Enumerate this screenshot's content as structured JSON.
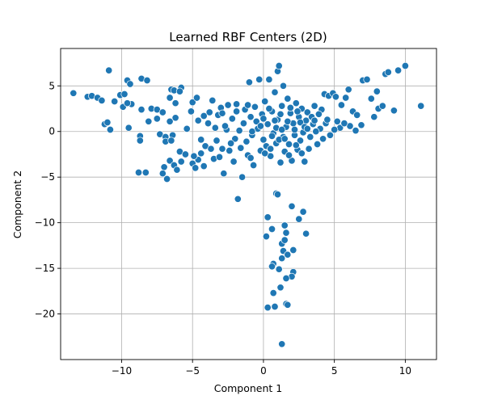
{
  "chart_data": {
    "type": "scatter",
    "title": "Learned RBF Centers (2D)",
    "xlabel": "Component 1",
    "ylabel": "Component 2",
    "xlim": [
      -14.3,
      12.2
    ],
    "ylim": [
      -25.0,
      9.1
    ],
    "xticks": [
      -10,
      -5,
      0,
      5,
      10
    ],
    "yticks": [
      5,
      0,
      -5,
      -10,
      -15,
      -20
    ],
    "ytick_labels": [
      "5",
      "0",
      "−5",
      "−10",
      "−15",
      "−20"
    ],
    "xtick_labels": [
      "−10",
      "−5",
      "0",
      "5",
      "10"
    ],
    "grid": true,
    "color": "#1f77b4",
    "points": [
      [
        -13.4,
        4.2
      ],
      [
        -12.4,
        3.8
      ],
      [
        -12.1,
        3.9
      ],
      [
        -11.7,
        3.7
      ],
      [
        -11.4,
        3.4
      ],
      [
        -10.9,
        6.7
      ],
      [
        -11.2,
        0.8
      ],
      [
        -11.0,
        1.0
      ],
      [
        -10.8,
        0.2
      ],
      [
        -10.5,
        3.3
      ],
      [
        -10.1,
        4.0
      ],
      [
        -9.9,
        2.7
      ],
      [
        -9.6,
        5.6
      ],
      [
        -9.4,
        5.2
      ],
      [
        -9.3,
        3.0
      ],
      [
        -9.6,
        3.1
      ],
      [
        -9.8,
        4.1
      ],
      [
        -9.5,
        0.4
      ],
      [
        -8.6,
        5.8
      ],
      [
        -8.2,
        5.6
      ],
      [
        -8.6,
        2.4
      ],
      [
        -8.7,
        -0.5
      ],
      [
        -8.7,
        -1.0
      ],
      [
        -8.8,
        -4.5
      ],
      [
        -8.3,
        -4.5
      ],
      [
        -8.1,
        1.1
      ],
      [
        -7.9,
        2.5
      ],
      [
        -7.5,
        2.4
      ],
      [
        -7.5,
        1.4
      ],
      [
        -7.1,
        2.1
      ],
      [
        -7.3,
        -0.3
      ],
      [
        -6.9,
        -0.6
      ],
      [
        -6.9,
        -1.1
      ],
      [
        -7.0,
        -3.9
      ],
      [
        -7.1,
        -4.6
      ],
      [
        -6.8,
        -5.2
      ],
      [
        -6.6,
        3.7
      ],
      [
        -6.5,
        4.6
      ],
      [
        -6.3,
        4.5
      ],
      [
        -6.2,
        3.1
      ],
      [
        -5.8,
        4.8
      ],
      [
        -5.9,
        4.4
      ],
      [
        -6.6,
        1.1
      ],
      [
        -6.2,
        1.5
      ],
      [
        -6.4,
        -0.4
      ],
      [
        -6.5,
        -1.0
      ],
      [
        -6.6,
        -3.2
      ],
      [
        -6.3,
        -3.7
      ],
      [
        -6.1,
        -4.2
      ],
      [
        -5.8,
        -3.3
      ],
      [
        -5.9,
        -2.2
      ],
      [
        -5.5,
        -2.5
      ],
      [
        -5.4,
        0.3
      ],
      [
        -5.1,
        2.2
      ],
      [
        -5.0,
        3.2
      ],
      [
        -4.7,
        3.7
      ],
      [
        -4.6,
        1.2
      ],
      [
        -5.0,
        -3.5
      ],
      [
        -4.8,
        -4.0
      ],
      [
        -4.6,
        -3.1
      ],
      [
        -4.4,
        -2.4
      ],
      [
        -4.2,
        -3.8
      ],
      [
        -4.1,
        -1.6
      ],
      [
        -3.9,
        0.9
      ],
      [
        -3.8,
        2.1
      ],
      [
        -3.6,
        3.4
      ],
      [
        -3.5,
        -3.0
      ],
      [
        -3.3,
        -1.0
      ],
      [
        -3.2,
        1.8
      ],
      [
        -3.0,
        2.6
      ],
      [
        -2.9,
        -1.9
      ],
      [
        -2.8,
        -4.6
      ],
      [
        -2.6,
        0.2
      ],
      [
        -2.5,
        2.9
      ],
      [
        -2.4,
        -2.1
      ],
      [
        -2.2,
        1.4
      ],
      [
        -2.0,
        -0.8
      ],
      [
        -1.9,
        3.0
      ],
      [
        -1.8,
        -7.4
      ],
      [
        -1.5,
        -5.0
      ],
      [
        -1.6,
        -1.8
      ],
      [
        -1.4,
        0.9
      ],
      [
        -1.3,
        2.4
      ],
      [
        -1.1,
        -2.6
      ],
      [
        -1.0,
        5.4
      ],
      [
        -0.9,
        1.6
      ],
      [
        -0.8,
        -0.4
      ],
      [
        -0.7,
        -3.7
      ],
      [
        -0.6,
        2.7
      ],
      [
        -0.4,
        0.3
      ],
      [
        -0.3,
        5.7
      ],
      [
        -0.2,
        -2.1
      ],
      [
        -0.1,
        1.9
      ],
      [
        0.0,
        -0.9
      ],
      [
        0.1,
        3.3
      ],
      [
        0.2,
        -1.6
      ],
      [
        0.3,
        0.8
      ],
      [
        0.4,
        5.7
      ],
      [
        0.5,
        -2.7
      ],
      [
        0.6,
        2.2
      ],
      [
        0.7,
        -0.2
      ],
      [
        0.8,
        4.3
      ],
      [
        0.9,
        -1.3
      ],
      [
        1.0,
        6.6
      ],
      [
        1.1,
        7.2
      ],
      [
        1.0,
        1.3
      ],
      [
        1.2,
        -3.4
      ],
      [
        1.3,
        2.8
      ],
      [
        1.4,
        5.0
      ],
      [
        1.4,
        -0.6
      ],
      [
        1.5,
        -2.2
      ],
      [
        1.6,
        0.5
      ],
      [
        1.7,
        3.6
      ],
      [
        1.8,
        -1.4
      ],
      [
        1.9,
        2.0
      ],
      [
        2.0,
        -3.2
      ],
      [
        2.1,
        0.9
      ],
      [
        2.2,
        -0.4
      ],
      [
        2.3,
        3.1
      ],
      [
        2.4,
        -2.0
      ],
      [
        2.5,
        1.6
      ],
      [
        2.6,
        -1.0
      ],
      [
        2.7,
        2.5
      ],
      [
        2.8,
        -0.1
      ],
      [
        2.9,
        -3.3
      ],
      [
        3.0,
        1.2
      ],
      [
        3.1,
        2.1
      ],
      [
        3.3,
        -0.6
      ],
      [
        3.5,
        0.8
      ],
      [
        3.6,
        2.8
      ],
      [
        3.8,
        -1.4
      ],
      [
        4.0,
        0.3
      ],
      [
        4.1,
        2.4
      ],
      [
        4.3,
        4.1
      ],
      [
        4.4,
        0.9
      ],
      [
        4.6,
        3.9
      ],
      [
        4.7,
        -0.4
      ],
      [
        4.9,
        4.2
      ],
      [
        5.1,
        3.8
      ],
      [
        5.2,
        1.1
      ],
      [
        5.4,
        0.4
      ],
      [
        5.5,
        2.9
      ],
      [
        5.8,
        3.7
      ],
      [
        6.0,
        4.6
      ],
      [
        6.1,
        0.6
      ],
      [
        6.3,
        2.2
      ],
      [
        6.5,
        0.1
      ],
      [
        6.6,
        1.8
      ],
      [
        6.9,
        0.7
      ],
      [
        7.0,
        5.6
      ],
      [
        7.3,
        5.7
      ],
      [
        7.6,
        3.6
      ],
      [
        7.8,
        1.6
      ],
      [
        8.0,
        4.4
      ],
      [
        8.1,
        2.5
      ],
      [
        8.4,
        2.8
      ],
      [
        8.6,
        6.3
      ],
      [
        8.8,
        6.5
      ],
      [
        9.2,
        2.3
      ],
      [
        9.5,
        6.7
      ],
      [
        10.0,
        7.2
      ],
      [
        11.1,
        2.8
      ],
      [
        0.3,
        -9.4
      ],
      [
        0.6,
        -10.7
      ],
      [
        0.2,
        -11.5
      ],
      [
        1.3,
        -12.3
      ],
      [
        1.5,
        -10.3
      ],
      [
        1.4,
        -13.1
      ],
      [
        1.6,
        -11.1
      ],
      [
        1.5,
        -11.9
      ],
      [
        1.7,
        -13.5
      ],
      [
        1.3,
        -13.9
      ],
      [
        2.0,
        -8.2
      ],
      [
        2.1,
        -13.0
      ],
      [
        2.5,
        -9.6
      ],
      [
        2.8,
        -8.8
      ],
      [
        3.0,
        -11.2
      ],
      [
        0.7,
        -14.5
      ],
      [
        0.6,
        -14.8
      ],
      [
        1.1,
        -15.1
      ],
      [
        2.1,
        -15.4
      ],
      [
        2.0,
        -15.9
      ],
      [
        1.6,
        -16.1
      ],
      [
        1.2,
        -17.1
      ],
      [
        0.7,
        -17.7
      ],
      [
        1.6,
        -18.9
      ],
      [
        1.7,
        -19.0
      ],
      [
        0.8,
        -19.2
      ],
      [
        0.3,
        -19.3
      ],
      [
        1.3,
        -23.3
      ],
      [
        0.9,
        -6.8
      ],
      [
        1.0,
        -6.9
      ],
      [
        -4.9,
        -2.7
      ],
      [
        -4.4,
        -0.9
      ],
      [
        -3.1,
        -2.8
      ],
      [
        -2.7,
        0.6
      ],
      [
        -1.2,
        -1.1
      ],
      [
        -0.5,
        1.1
      ],
      [
        0.4,
        2.5
      ],
      [
        0.9,
        0.4
      ],
      [
        1.1,
        -0.9
      ],
      [
        1.7,
        1.1
      ],
      [
        2.2,
        0.2
      ],
      [
        2.6,
        1.0
      ],
      [
        3.2,
        -1.9
      ],
      [
        3.4,
        1.6
      ],
      [
        3.9,
        1.9
      ],
      [
        4.5,
        1.3
      ],
      [
        5.0,
        0.2
      ],
      [
        5.7,
        0.9
      ],
      [
        -2.3,
        -1.3
      ],
      [
        -1.7,
        0.1
      ],
      [
        -0.9,
        -2.9
      ],
      [
        -0.2,
        0.6
      ],
      [
        0.5,
        -1.9
      ],
      [
        1.2,
        1.9
      ],
      [
        1.8,
        -2.6
      ],
      [
        2.4,
        2.2
      ],
      [
        2.9,
        0.5
      ],
      [
        3.7,
        0.0
      ],
      [
        -3.7,
        -1.9
      ],
      [
        -2.1,
        -3.3
      ],
      [
        -1.1,
        2.9
      ],
      [
        0.1,
        -2.4
      ],
      [
        0.8,
        1.2
      ],
      [
        1.5,
        -0.8
      ],
      [
        2.3,
        -1.5
      ],
      [
        3.1,
        0.3
      ],
      [
        4.2,
        -0.8
      ],
      [
        -4.2,
        1.7
      ],
      [
        -3.4,
        0.4
      ],
      [
        -2.9,
        2.0
      ],
      [
        -1.9,
        2.2
      ],
      [
        -0.8,
        0.0
      ],
      [
        0.0,
        1.4
      ],
      [
        0.6,
        -0.5
      ],
      [
        1.3,
        0.2
      ],
      [
        1.9,
        2.6
      ],
      [
        2.7,
        -2.4
      ],
      [
        3.6,
        1.2
      ]
    ]
  }
}
